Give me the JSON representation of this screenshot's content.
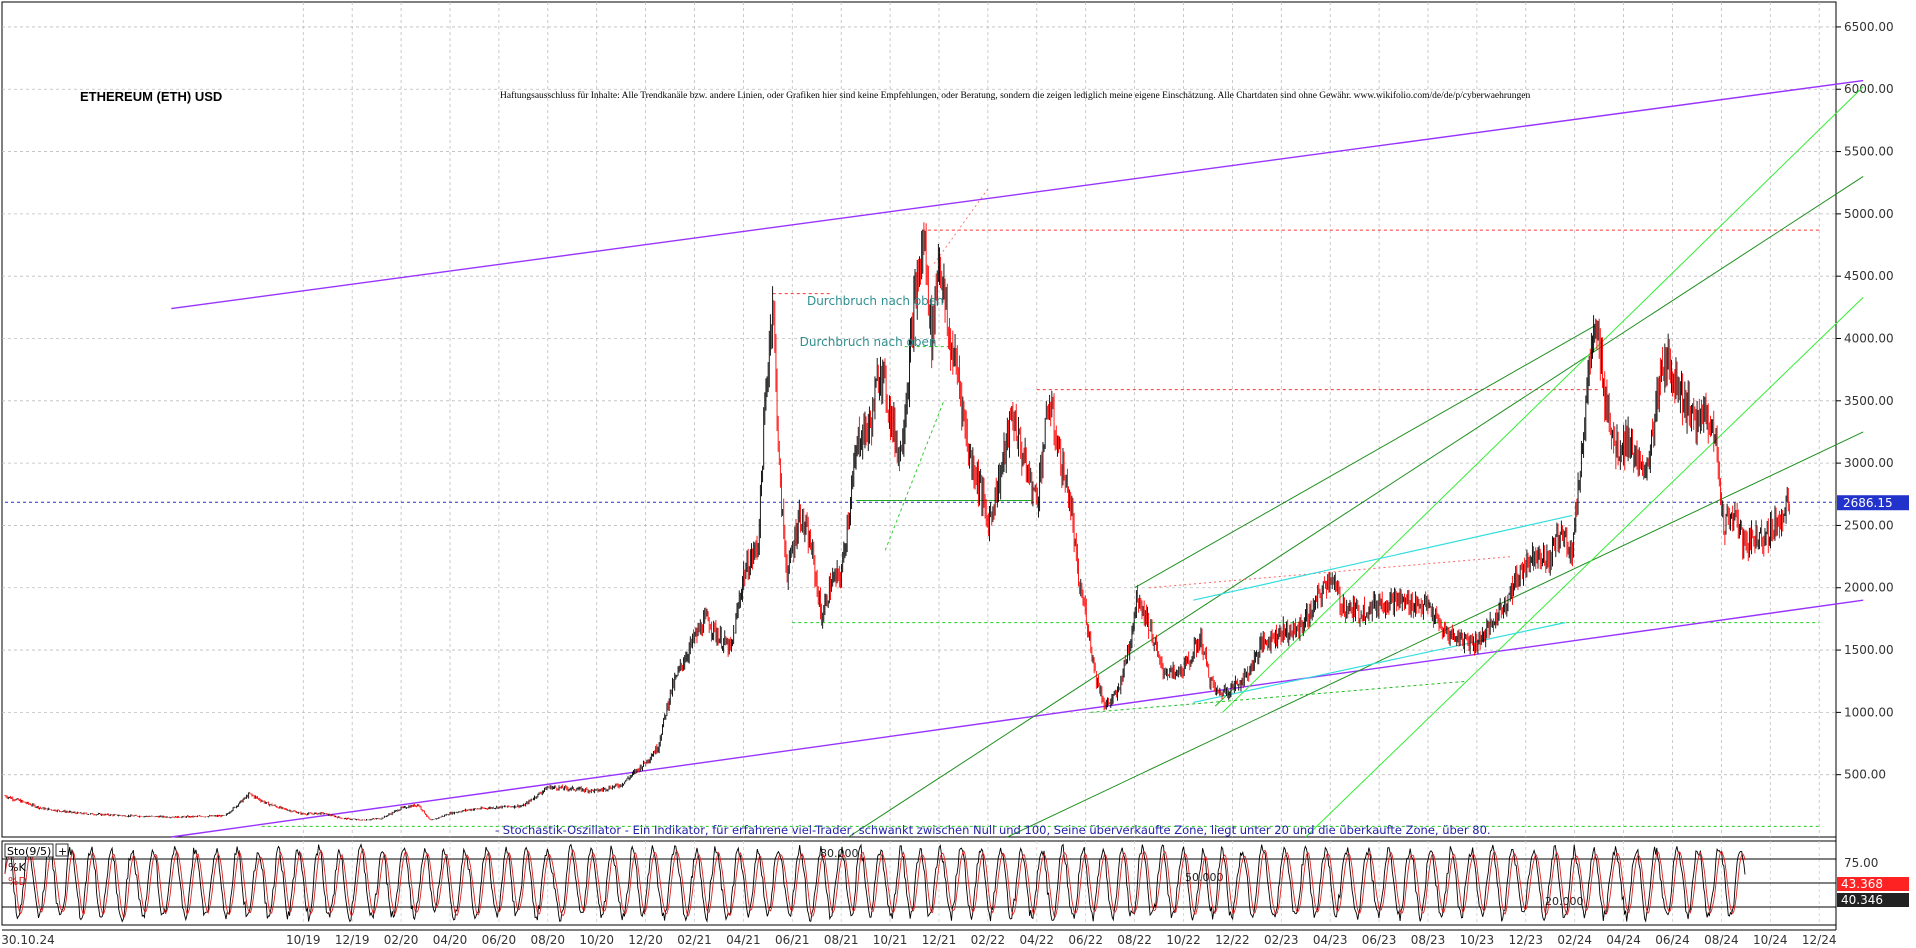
{
  "chart_data": [
    {
      "type": "candlestick",
      "title": "ETHEREUM (ETH) USD",
      "disclaimer": "Haftungsausschluss für Inhalte: Alle Trendkanäle bzw. andere Linien, oder Grafiken hier sind keine Empfehlungen, oder Beratung, sondern die zeigen lediglich meine eigene Einschätzung. Alle Chartdaten sind ohne Gewähr.  www.wikifolio.com/de/de/p/cyberwaehrungen",
      "ylim": [
        0,
        6700
      ],
      "y_ticks": [
        {
          "v": 500,
          "l": "500.00"
        },
        {
          "v": 1000,
          "l": "1000.00"
        },
        {
          "v": 1500,
          "l": "1500.00"
        },
        {
          "v": 2000,
          "l": "2000.00"
        },
        {
          "v": 2500,
          "l": "2500.00"
        },
        {
          "v": 3000,
          "l": "3000.00"
        },
        {
          "v": 3500,
          "l": "3500.00"
        },
        {
          "v": 4000,
          "l": "4000.00"
        },
        {
          "v": 4500,
          "l": "4500.00"
        },
        {
          "v": 5000,
          "l": "5000.00"
        },
        {
          "v": 5500,
          "l": "5500.00"
        },
        {
          "v": 6000,
          "l": "6000.00"
        },
        {
          "v": 6500,
          "l": "6500.00"
        }
      ],
      "x_ticks": [
        {
          "t": 0.0,
          "l": "30.10.24"
        },
        {
          "t": 12.2,
          "l": "10/19"
        },
        {
          "t": 14.2,
          "l": "12/19"
        },
        {
          "t": 16.2,
          "l": "02/20"
        },
        {
          "t": 18.2,
          "l": "04/20"
        },
        {
          "t": 20.2,
          "l": "06/20"
        },
        {
          "t": 22.2,
          "l": "08/20"
        },
        {
          "t": 24.2,
          "l": "10/20"
        },
        {
          "t": 26.2,
          "l": "12/20"
        },
        {
          "t": 28.2,
          "l": "02/21"
        },
        {
          "t": 30.2,
          "l": "04/21"
        },
        {
          "t": 32.2,
          "l": "06/21"
        },
        {
          "t": 34.2,
          "l": "08/21"
        },
        {
          "t": 36.2,
          "l": "10/21"
        },
        {
          "t": 38.2,
          "l": "12/21"
        },
        {
          "t": 40.2,
          "l": "02/22"
        },
        {
          "t": 42.2,
          "l": "04/22"
        },
        {
          "t": 44.2,
          "l": "06/22"
        },
        {
          "t": 46.2,
          "l": "08/22"
        },
        {
          "t": 48.2,
          "l": "10/22"
        },
        {
          "t": 50.2,
          "l": "12/22"
        },
        {
          "t": 52.2,
          "l": "02/23"
        },
        {
          "t": 54.2,
          "l": "04/23"
        },
        {
          "t": 56.2,
          "l": "06/23"
        },
        {
          "t": 58.2,
          "l": "08/23"
        },
        {
          "t": 60.2,
          "l": "10/23"
        },
        {
          "t": 62.2,
          "l": "12/23"
        },
        {
          "t": 64.2,
          "l": "02/24"
        },
        {
          "t": 66.2,
          "l": "04/24"
        },
        {
          "t": 68.2,
          "l": "06/24"
        },
        {
          "t": 70.2,
          "l": "08/24"
        },
        {
          "t": 72.2,
          "l": "10/24"
        },
        {
          "t": 74.2,
          "l": "12/24"
        }
      ],
      "price_path": [
        [
          10.0,
          345
        ],
        [
          10.7,
          270
        ],
        [
          11.4,
          225
        ],
        [
          12.2,
          185
        ],
        [
          13.0,
          190
        ],
        [
          13.8,
          150
        ],
        [
          14.6,
          135
        ],
        [
          15.4,
          150
        ],
        [
          16.2,
          230
        ],
        [
          16.9,
          260
        ],
        [
          17.4,
          130
        ],
        [
          18.2,
          190
        ],
        [
          19.0,
          220
        ],
        [
          20.2,
          240
        ],
        [
          21.2,
          250
        ],
        [
          22.2,
          400
        ],
        [
          23.0,
          390
        ],
        [
          24.2,
          370
        ],
        [
          25.2,
          420
        ],
        [
          26.2,
          600
        ],
        [
          26.7,
          720
        ],
        [
          27.2,
          1150
        ],
        [
          27.6,
          1350
        ],
        [
          28.2,
          1600
        ],
        [
          28.7,
          1750
        ],
        [
          29.2,
          1600
        ],
        [
          29.7,
          1500
        ],
        [
          30.2,
          2100
        ],
        [
          30.8,
          2350
        ],
        [
          31.1,
          3500
        ],
        [
          31.4,
          4350
        ],
        [
          31.7,
          2800
        ],
        [
          32.0,
          2100
        ],
        [
          32.5,
          2600
        ],
        [
          33.0,
          2300
        ],
        [
          33.4,
          1750
        ],
        [
          33.8,
          2050
        ],
        [
          34.2,
          2100
        ],
        [
          34.5,
          2600
        ],
        [
          34.9,
          3200
        ],
        [
          35.4,
          3300
        ],
        [
          35.8,
          3800
        ],
        [
          36.2,
          3400
        ],
        [
          36.6,
          3050
        ],
        [
          36.9,
          3600
        ],
        [
          37.2,
          4300
        ],
        [
          37.6,
          4800
        ],
        [
          37.9,
          4000
        ],
        [
          38.2,
          4700
        ],
        [
          38.6,
          4000
        ],
        [
          39.0,
          3700
        ],
        [
          39.4,
          3100
        ],
        [
          39.9,
          2800
        ],
        [
          40.2,
          2500
        ],
        [
          40.7,
          2900
        ],
        [
          41.2,
          3400
        ],
        [
          41.7,
          3000
        ],
        [
          42.2,
          2700
        ],
        [
          42.7,
          3500
        ],
        [
          43.2,
          3000
        ],
        [
          43.6,
          2650
        ],
        [
          43.9,
          2050
        ],
        [
          44.2,
          1800
        ],
        [
          44.6,
          1300
        ],
        [
          45.0,
          1050
        ],
        [
          45.5,
          1150
        ],
        [
          46.0,
          1550
        ],
        [
          46.3,
          1950
        ],
        [
          46.8,
          1700
        ],
        [
          47.3,
          1350
        ],
        [
          47.9,
          1300
        ],
        [
          48.4,
          1400
        ],
        [
          48.9,
          1600
        ],
        [
          49.3,
          1250
        ],
        [
          49.6,
          1150
        ],
        [
          50.2,
          1200
        ],
        [
          50.8,
          1300
        ],
        [
          51.4,
          1550
        ],
        [
          52.2,
          1650
        ],
        [
          52.8,
          1650
        ],
        [
          53.4,
          1800
        ],
        [
          54.2,
          2100
        ],
        [
          54.7,
          1850
        ],
        [
          55.4,
          1800
        ],
        [
          56.2,
          1880
        ],
        [
          56.8,
          1900
        ],
        [
          57.4,
          1880
        ],
        [
          58.2,
          1850
        ],
        [
          58.8,
          1650
        ],
        [
          59.4,
          1600
        ],
        [
          60.2,
          1560
        ],
        [
          60.8,
          1700
        ],
        [
          61.4,
          1900
        ],
        [
          61.8,
          2050
        ],
        [
          62.2,
          2200
        ],
        [
          62.7,
          2300
        ],
        [
          63.1,
          2200
        ],
        [
          63.6,
          2450
        ],
        [
          64.1,
          2300
        ],
        [
          64.4,
          2900
        ],
        [
          64.8,
          3800
        ],
        [
          65.1,
          4050
        ],
        [
          65.5,
          3500
        ],
        [
          65.9,
          3100
        ],
        [
          66.4,
          3200
        ],
        [
          66.9,
          2900
        ],
        [
          67.3,
          3100
        ],
        [
          67.8,
          3800
        ],
        [
          68.2,
          3750
        ],
        [
          68.7,
          3500
        ],
        [
          69.2,
          3300
        ],
        [
          69.6,
          3450
        ],
        [
          70.0,
          3100
        ],
        [
          70.3,
          2500
        ],
        [
          70.7,
          2600
        ],
        [
          71.1,
          2350
        ],
        [
          71.6,
          2400
        ],
        [
          72.2,
          2450
        ],
        [
          72.7,
          2600
        ],
        [
          73.0,
          2686
        ]
      ],
      "last_price": "2686.15",
      "annotations": [
        {
          "t": 32.8,
          "y": 4270,
          "text": "Durchbruch nach oben"
        },
        {
          "t": 32.5,
          "y": 3940,
          "text": "Durchbruch nach oben"
        }
      ],
      "stochastic_note": "- Stochastik-Oszillator - Ein Indikator, für erfahrene viel-Trader, schwankt zwischen Null und 100, Seine überverkaufte Zone, liegt unter 20 und die überkaufte Zone, über 80."
    },
    {
      "type": "line",
      "name": "Sto(9/5)",
      "ylim": [
        0,
        100
      ],
      "y_ticks": [
        {
          "v": 75,
          "l": "75.00"
        },
        {
          "v": 25,
          "l": "25.00"
        }
      ],
      "levels": [
        {
          "v": 80,
          "l": "80.000"
        },
        {
          "v": 50,
          "l": "50.000"
        },
        {
          "v": 20,
          "l": "20.000"
        }
      ],
      "series": [
        {
          "name": "%K",
          "last": "43.368",
          "color": "#e02020"
        },
        {
          "name": "%D",
          "last": "40.346",
          "color": "#000000"
        }
      ]
    }
  ],
  "colors": {
    "price_up": "#000000",
    "price_down": "#ff0000",
    "channel": "#9933ff",
    "green_dark": "#1f8f1f",
    "green_light": "#33ee33",
    "cyan": "#33dddd",
    "last_price_box": "#2233cc",
    "k_box": "#ff2222",
    "d_box": "#222222"
  }
}
